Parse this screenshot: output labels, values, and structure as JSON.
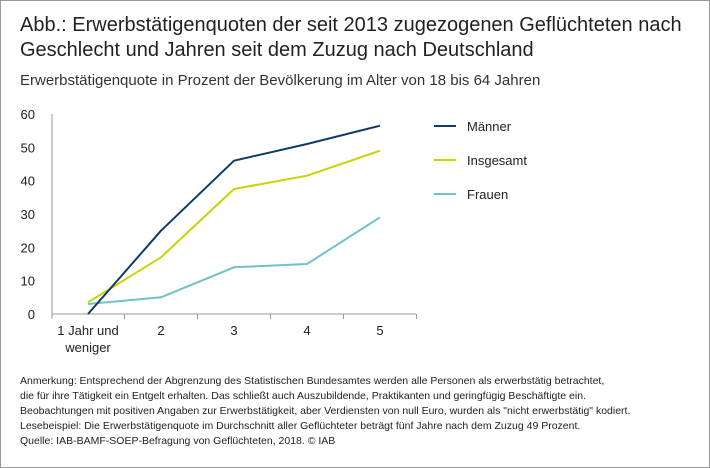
{
  "title_line1": "Abb.: Erwerbstätigenquoten der seit 2013 zugezogenen Geflüchteten nach",
  "title_line2": "Geschlecht und Jahren seit dem Zuzug nach Deutschland",
  "subtitle": "Erwerbstätigenquote in Prozent der Bevölkerung im Alter von 18 bis 64 Jahren",
  "notes": [
    "Anmerkung: Entsprechend der Abgrenzung des Statistischen Bundesamtes werden alle Personen als erwerbstätig betrachtet,",
    "die für ihre Tätigkeit ein Entgelt erhalten. Das schließt auch Auszubildende, Praktikanten und geringfügig Beschäftigte ein.",
    "Beobachtungen mit positiven Angaben zur Erwerbstätigkeit, aber Verdiensten von null Euro, wurden als \"nicht erwerbstätig\" kodiert.",
    "Lesebeispiel: Die Erwerbstätigenquote im Durchschnitt aller Geflüchteter beträgt fünf Jahre nach dem Zuzug 49 Prozent.",
    "Quelle: IAB-BAMF-SOEP-Befragung von Geflüchteten, 2018. © IAB"
  ],
  "chart_data": {
    "type": "line",
    "categories": [
      [
        "1 Jahr und",
        "weniger"
      ],
      [
        "2"
      ],
      [
        "3"
      ],
      [
        "4"
      ],
      [
        "5"
      ]
    ],
    "ylim": [
      0,
      60
    ],
    "yticks": [
      0,
      10,
      20,
      30,
      40,
      50,
      60
    ],
    "grid": false,
    "legend_position": "right",
    "series": [
      {
        "name": "Männer",
        "color": "#0d3b66",
        "values": [
          0,
          25,
          46,
          51,
          56.5
        ]
      },
      {
        "name": "Insgesamt",
        "color": "#c8d400",
        "values": [
          3.5,
          17,
          37.5,
          41.5,
          49
        ]
      },
      {
        "name": "Frauen",
        "color": "#6cc3c8",
        "values": [
          3,
          5,
          14,
          15,
          29
        ]
      }
    ]
  }
}
